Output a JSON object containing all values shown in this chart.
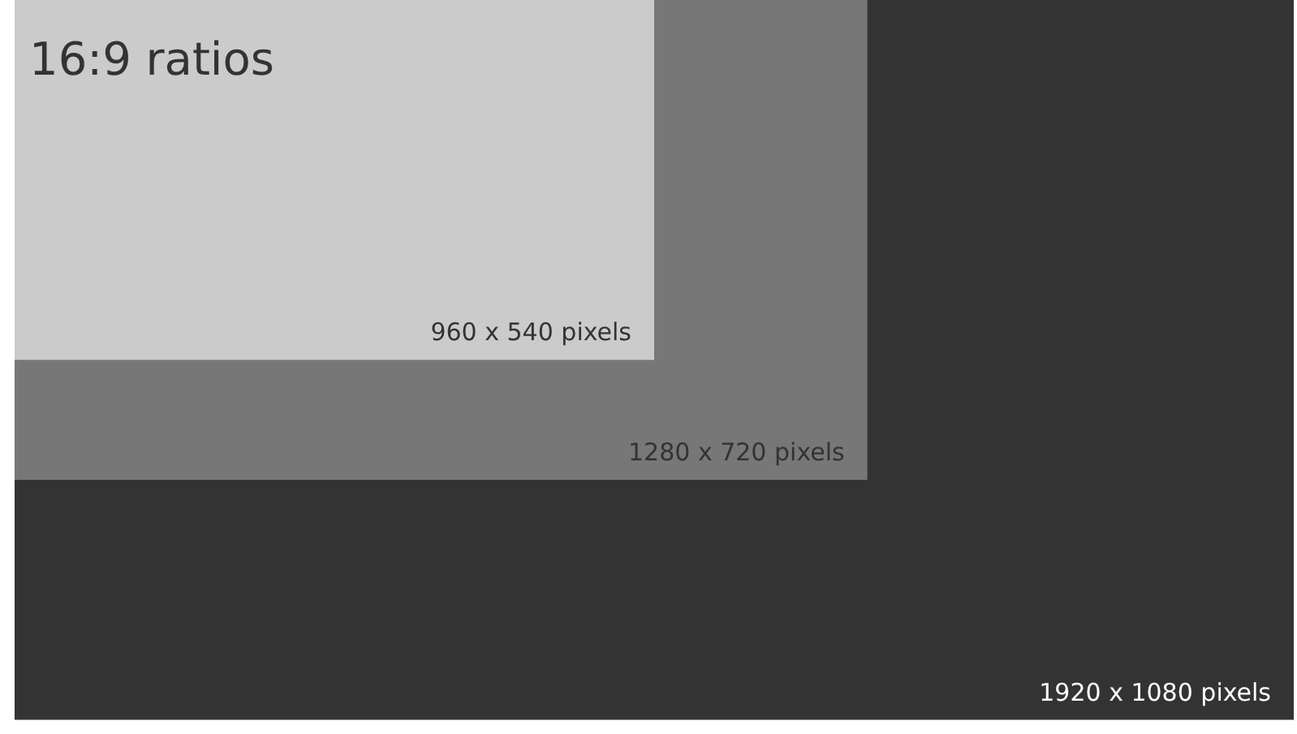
{
  "chart_data": {
    "type": "other",
    "title": "16:9 ratios",
    "categories": [
      "pixels",
      "pixels",
      "pixels"
    ],
    "annotations": [
      "x"
    ],
    "data_labels": true,
    "series": [
      {
        "values": [
          960,
          1280,
          1920
        ],
        "colors": [
          "#cbcbcb",
          "#777777",
          "#333333"
        ]
      },
      {
        "values": [
          540,
          720,
          1080
        ]
      }
    ]
  }
}
